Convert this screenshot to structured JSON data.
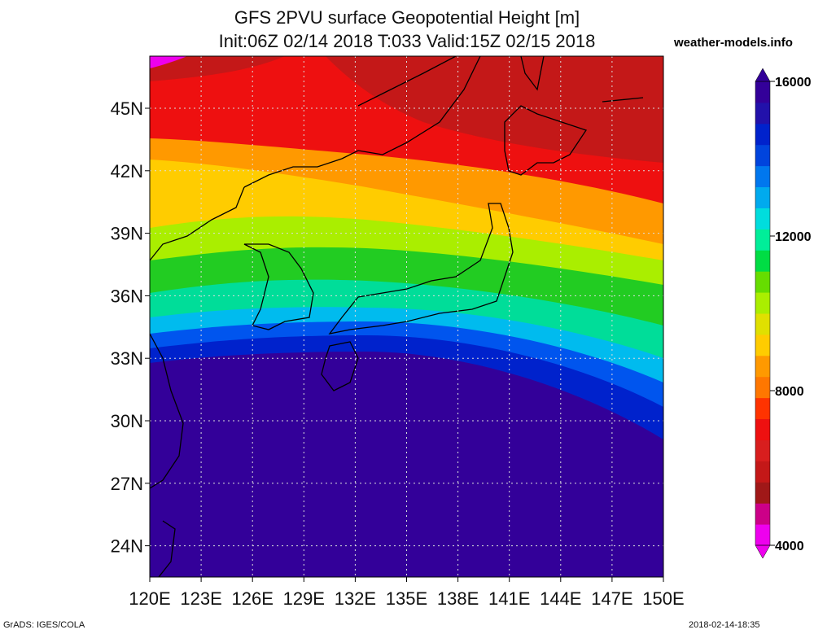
{
  "title": {
    "line1": "GFS 2PVU surface Geopotential Height [m]",
    "line2": "Init:06Z 02/14 2018 T:033 Valid:15Z 02/15 2018"
  },
  "source": "weather-models.info",
  "map": {
    "lon_range": [
      120,
      150
    ],
    "lat_range": [
      22.5,
      47.5
    ],
    "lat_ticks": [
      "45N",
      "42N",
      "39N",
      "36N",
      "33N",
      "30N",
      "27N",
      "24N"
    ],
    "lon_ticks": [
      "120E",
      "123E",
      "126E",
      "129E",
      "132E",
      "135E",
      "138E",
      "141E",
      "144E",
      "147E",
      "150E"
    ],
    "grid": "dotted",
    "field": "Geopotential Height on 2PVU surface (m)"
  },
  "colorbar": {
    "min": 4000,
    "max": 16000,
    "labels": [
      "16000",
      "12000",
      "8000",
      "4000"
    ],
    "colors": [
      "#ee00ee",
      "#cc0088",
      "#a01818",
      "#c41818",
      "#d81e1e",
      "#ee1010",
      "#ff3300",
      "#ff7700",
      "#ff9900",
      "#ffcc00",
      "#e0e000",
      "#aaee00",
      "#66dd00",
      "#00dd44",
      "#00ee99",
      "#00dddd",
      "#00aaee",
      "#0077ee",
      "#0044dd",
      "#0022cc",
      "#2211aa",
      "#330099"
    ]
  },
  "footer": {
    "left": "GrADS: IGES/COLA",
    "right": "2018-02-14-18:35"
  }
}
